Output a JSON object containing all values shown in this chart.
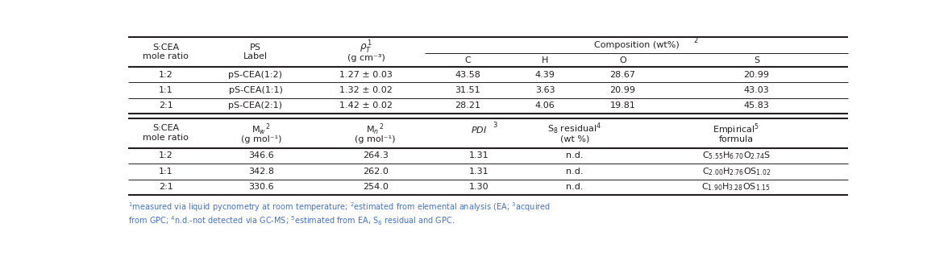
{
  "fig_width": 11.81,
  "fig_height": 3.29,
  "bg_color": "#ffffff",
  "text_color": "#231f20",
  "footnote_color": "#4472c4",
  "t1_rows": [
    [
      "1:2",
      "pS-CEA(1:2)",
      "1.27 ± 0.03",
      "43.58",
      "4.39",
      "28.67",
      "20.99"
    ],
    [
      "1:1",
      "pS-CEA(1:1)",
      "1.32 ± 0.02",
      "31.51",
      "3.63",
      "20.99",
      "43.03"
    ],
    [
      "2:1",
      "pS-CEA(2:1)",
      "1.42 ± 0.02",
      "28.21",
      "4.06",
      "19.81",
      "45.83"
    ]
  ],
  "t2_rows": [
    [
      "1:2",
      "346.6",
      "264.3",
      "1.31",
      "n.d.",
      "C$_{5.55}$H$_{6.70}$O$_{2.74}$S"
    ],
    [
      "1:1",
      "342.8",
      "262.0",
      "1.31",
      "n.d.",
      "C$_{2.00}$H$_{2.76}$OS$_{1.02}$"
    ],
    [
      "2:1",
      "330.6",
      "254.0",
      "1.30",
      "n.d.",
      "C$_{1.90}$H$_{3.28}$OS$_{1.15}$"
    ]
  ],
  "footnote1": "$^{1}$measured via liquid pycnometry at room temperature; $^{2}$estimated from elemental analysis (EA; $^{3}$acquired",
  "footnote2": "from GPC; $^{4}$n.d.-not detected via GC-MS; $^{5}$estimated from EA, S$_{8}$ residual and GPC."
}
